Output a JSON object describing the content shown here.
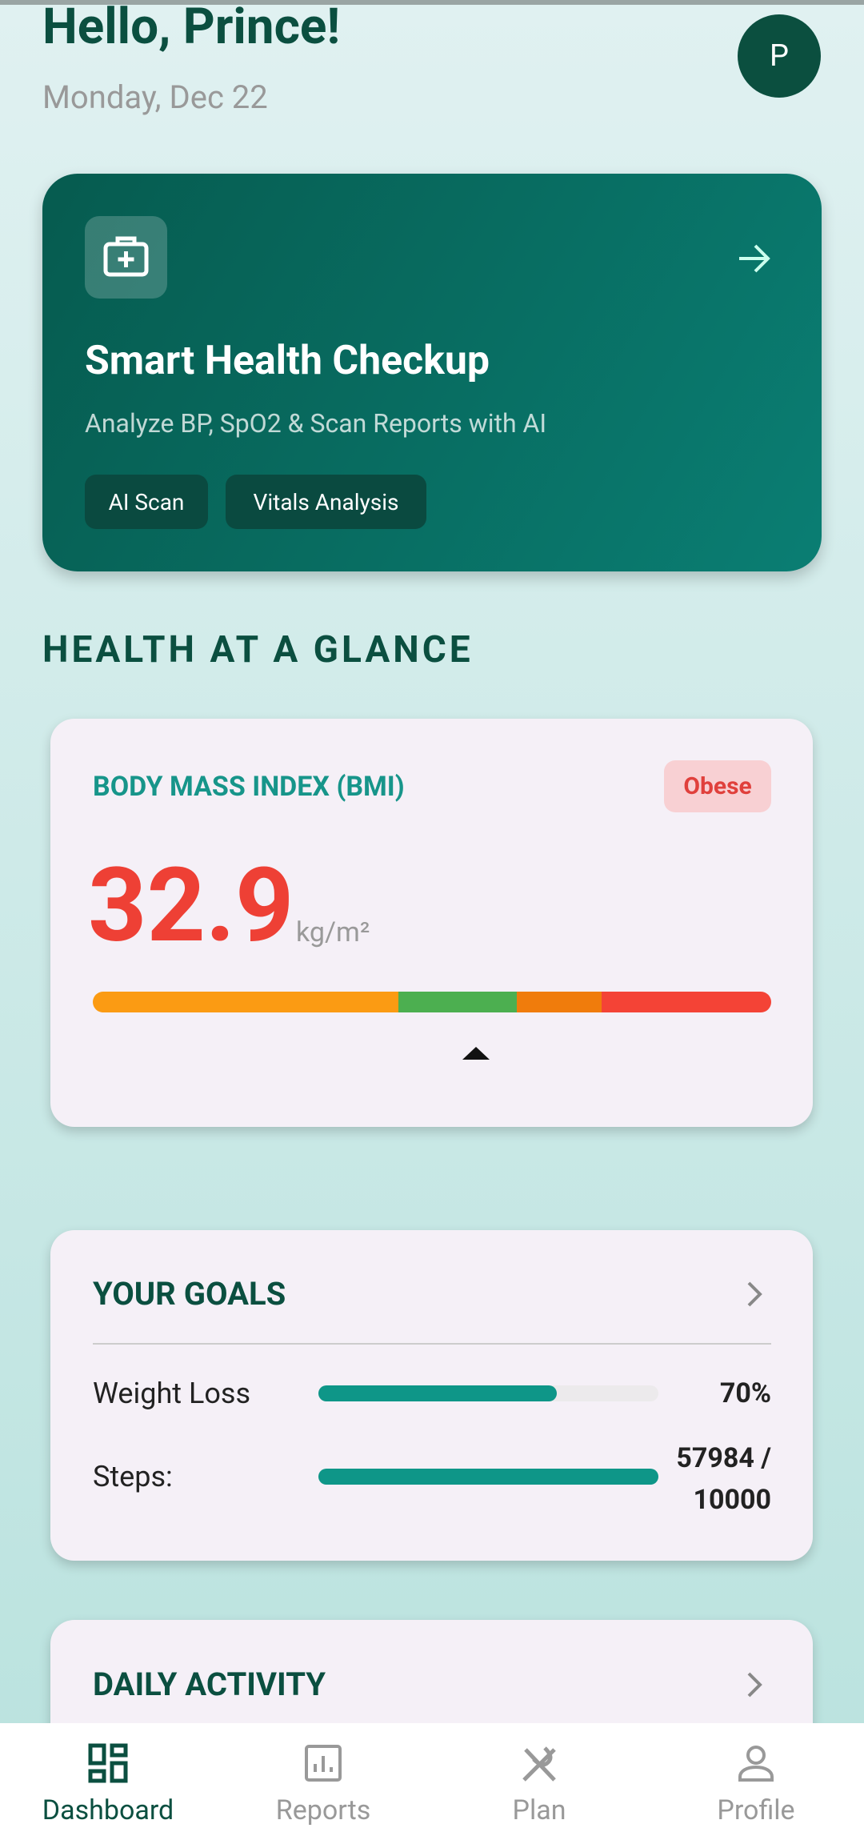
{
  "header": {
    "greeting": "Hello, Prince!",
    "date": "Monday, Dec 22",
    "avatar": "P"
  },
  "checkup": {
    "title": "Smart Health Checkup",
    "subtitle": "Analyze BP, SpO2 & Scan Reports with AI",
    "tags": [
      "AI Scan",
      "Vitals Analysis"
    ]
  },
  "section_title": "HEALTH AT A GLANCE",
  "bmi": {
    "label": "BODY MASS INDEX (BMI)",
    "status": "Obese",
    "value": 32.9,
    "unit": "kg/m²"
  },
  "goals": {
    "title": "YOUR GOALS",
    "items": [
      {
        "label": "Weight Loss",
        "value": 70,
        "value_label": "70%"
      },
      {
        "label": "Steps:",
        "value": 57984,
        "target": 10000,
        "value_label": "57984 / 10000"
      }
    ]
  },
  "daily_activity": {
    "title": "DAILY ACTIVITY"
  },
  "nav": [
    {
      "label": "Dashboard"
    },
    {
      "label": "Reports"
    },
    {
      "label": "Plan"
    },
    {
      "label": "Profile"
    }
  ]
}
